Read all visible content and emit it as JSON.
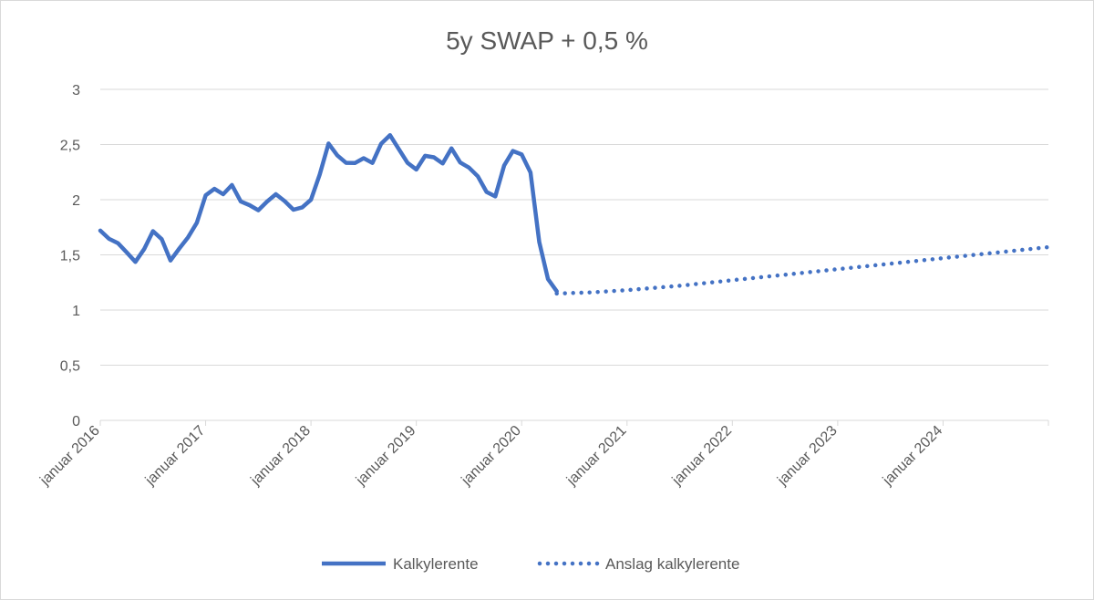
{
  "chart_data": {
    "type": "line",
    "title": "5y SWAP + 0,5 %",
    "xlabel": "",
    "ylabel": "",
    "ylim": [
      0,
      3
    ],
    "y_ticks": [
      "0",
      "0,5",
      "1",
      "1,5",
      "2",
      "2,5",
      "3"
    ],
    "x_tick_labels": [
      "januar 2016",
      "januar 2017",
      "januar 2018",
      "januar 2019",
      "januar 2020",
      "januar 2021",
      "januar 2022",
      "januar 2023",
      "januar 2024"
    ],
    "xlim": [
      "2016-01",
      "2025-01"
    ],
    "grid": "horizontal",
    "legend_position": "bottom",
    "series": [
      {
        "name": "Kalkylerente",
        "style": "solid",
        "color": "#4472C4",
        "x": [
          "2016-01",
          "2016-02",
          "2016-03",
          "2016-04",
          "2016-05",
          "2016-06",
          "2016-07",
          "2016-08",
          "2016-09",
          "2016-10",
          "2016-11",
          "2016-12",
          "2017-01",
          "2017-02",
          "2017-03",
          "2017-04",
          "2017-05",
          "2017-06",
          "2017-07",
          "2017-08",
          "2017-09",
          "2017-10",
          "2017-11",
          "2017-12",
          "2018-01",
          "2018-02",
          "2018-03",
          "2018-04",
          "2018-05",
          "2018-06",
          "2018-07",
          "2018-08",
          "2018-09",
          "2018-10",
          "2018-11",
          "2018-12",
          "2019-01",
          "2019-02",
          "2019-03",
          "2019-04",
          "2019-05",
          "2019-06",
          "2019-07",
          "2019-08",
          "2019-09",
          "2019-10",
          "2019-11",
          "2019-12",
          "2020-01",
          "2020-02",
          "2020-03",
          "2020-04",
          "2020-05"
        ],
        "y": [
          1.72,
          1.62,
          1.58,
          1.52,
          1.46,
          1.58,
          1.72,
          1.62,
          1.42,
          1.55,
          1.68,
          1.82,
          2.05,
          2.08,
          2.02,
          2.12,
          2.0,
          1.98,
          1.92,
          1.97,
          2.02,
          1.97,
          1.92,
          1.96,
          2.02,
          2.22,
          2.48,
          2.38,
          2.34,
          2.36,
          2.4,
          2.33,
          2.48,
          2.56,
          2.46,
          2.36,
          2.3,
          2.4,
          2.36,
          2.3,
          2.46,
          2.36,
          2.32,
          2.22,
          2.05,
          2.0,
          2.3,
          2.46,
          2.44,
          2.26,
          1.6,
          1.25,
          1.17
        ]
      },
      {
        "name": "Anslag kalkylerente",
        "style": "dotted",
        "color": "#4472C4",
        "x": [
          "2020-05",
          "2020-09",
          "2021-01",
          "2021-07",
          "2022-01",
          "2022-07",
          "2023-01",
          "2023-07",
          "2024-01",
          "2024-07",
          "2025-01"
        ],
        "y": [
          1.15,
          1.16,
          1.18,
          1.22,
          1.27,
          1.32,
          1.37,
          1.42,
          1.47,
          1.52,
          1.57
        ]
      }
    ]
  }
}
